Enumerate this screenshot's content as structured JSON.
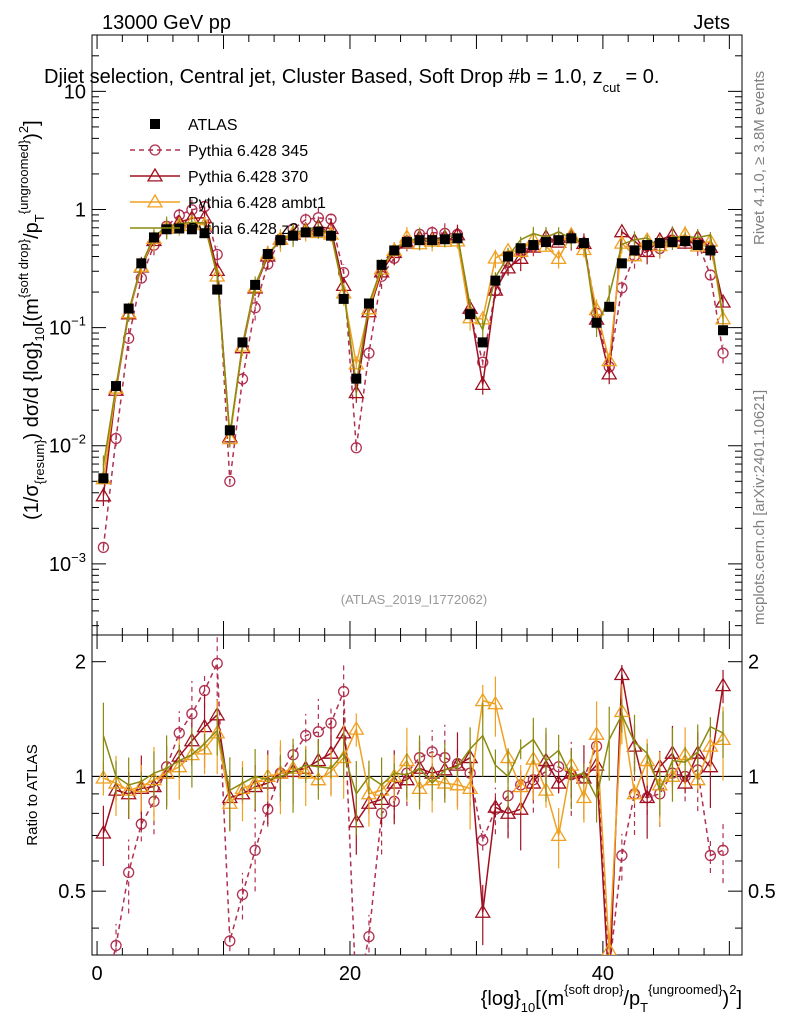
{
  "header": {
    "left": "13000 GeV pp",
    "right": "Jets",
    "title": "Djiet selection, Central jet, Cluster Based, Soft Drop #b = 1.0, z",
    "title_sub": "cut",
    "title_tail": " = 0.",
    "ref_label": "(ATLAS_2019_I1772062)"
  },
  "side": {
    "rivet": "Rivet 4.1.0, ≥ 3.8M events",
    "mcplots": "mcplots.cern.ch [arXiv:2401.10621]"
  },
  "axes": {
    "ylabel_main": "(1/σ_{resum}) dσ/d {log}_{10}[(m^{soft drop}/p_T^{ungroomed})^2]",
    "ylabel_main_parts": {
      "a": "(1/σ",
      "a_sub": "{resum}",
      "b": ") dσ/d {log}",
      "b_sub": "10",
      "c": "[(m",
      "c_sup": "{soft drop}",
      "d": "/p",
      "d_sub": "T",
      "d_sup": "{ungroomed}",
      "e": ")",
      "e_sup": "2",
      "f": "]"
    },
    "ylabel_ratio": "Ratio to ATLAS",
    "xlabel_parts": {
      "a": "{log}",
      "a_sub": "10",
      "b": "[(m",
      "b_sup": "{soft drop}",
      "c": "/p",
      "c_sub": "T",
      "c_sup": "{ungroomed}",
      "d": ")",
      "d_sup": "2",
      "e": "]"
    },
    "main_yticks": [
      {
        "mant": "10",
        "exp": "−3",
        "value": 0.001
      },
      {
        "mant": "10",
        "exp": "−2",
        "value": 0.01
      },
      {
        "mant": "10",
        "exp": "−1",
        "value": 0.1
      },
      {
        "mant": "1",
        "exp": "",
        "value": 1
      },
      {
        "mant": "10",
        "exp": "",
        "value": 10
      }
    ],
    "ratio_yticks": [
      {
        "label": "0.5",
        "value": 0.5
      },
      {
        "label": "1",
        "value": 1
      },
      {
        "label": "2",
        "value": 2
      }
    ],
    "xticks": [
      {
        "label": "0",
        "value": 0
      },
      {
        "label": "20",
        "value": 20
      },
      {
        "label": "40",
        "value": 40
      }
    ]
  },
  "chart_data": {
    "type": "line",
    "title": "Djiet selection, Central jet, Cluster Based, Soft Drop #b = 1.0, z_cut = 0.",
    "xlabel": "{log}_10[(m^{soft drop}/p_T^{ungroomed})^2]",
    "ylabel": "(1/sigma_resum) dsigma/d {log}_10[(m^{soft drop}/p_T^{ungroomed})^2]",
    "xlim": [
      -0.4,
      51
    ],
    "ylim": [
      0.00025,
      30
    ],
    "yscale": "log",
    "ratio_ylim": [
      0.34,
      2.35
    ],
    "ratio_yscale": "log",
    "x": [
      0.5,
      1.5,
      2.5,
      3.5,
      4.5,
      5.5,
      6.5,
      7.5,
      8.5,
      9.5,
      10.5,
      11.5,
      12.5,
      13.5,
      14.5,
      15.5,
      16.5,
      17.5,
      18.5,
      19.5,
      20.5,
      21.5,
      22.5,
      23.5,
      24.5,
      25.5,
      26.5,
      27.5,
      28.5,
      29.5,
      30.5,
      31.5,
      32.5,
      33.5,
      34.5,
      35.5,
      36.5,
      37.5,
      38.5,
      39.5,
      40.5,
      41.5,
      42.5,
      43.5,
      44.5,
      45.5,
      46.5,
      47.5,
      48.5,
      49.5
    ],
    "atlas": [
      0.0053,
      0.032,
      0.145,
      0.35,
      0.58,
      0.68,
      0.69,
      0.68,
      0.63,
      0.21,
      0.0135,
      0.075,
      0.23,
      0.42,
      0.55,
      0.6,
      0.64,
      0.65,
      0.6,
      0.175,
      0.037,
      0.16,
      0.34,
      0.45,
      0.53,
      0.55,
      0.55,
      0.56,
      0.57,
      0.13,
      0.075,
      0.25,
      0.4,
      0.47,
      0.5,
      0.53,
      0.55,
      0.57,
      0.52,
      0.11,
      0.15,
      0.35,
      0.45,
      0.5,
      0.52,
      0.53,
      0.54,
      0.5,
      0.45,
      0.095
    ],
    "series": [
      {
        "name": "Pythia 6.428 345",
        "color": "#b03050",
        "style": "dashed",
        "marker": "circle",
        "ratio": [
          0.26,
          0.36,
          0.56,
          0.75,
          0.86,
          1.06,
          1.3,
          1.46,
          1.68,
          1.98,
          0.37,
          0.49,
          0.64,
          0.82,
          1.02,
          1.14,
          1.28,
          1.31,
          1.38,
          1.67,
          0.26,
          0.38,
          0.8,
          0.86,
          1.02,
          1.12,
          1.16,
          1.12,
          1.08,
          1.02,
          0.68,
          0.82,
          0.89,
          0.95,
          0.98,
          1.03,
          1.06,
          1.01,
          0.99,
          1.2,
          0.31,
          0.62,
          0.9,
          0.88,
          0.9,
          1.02,
          1.0,
          1.04,
          0.62,
          0.64
        ]
      },
      {
        "name": "Pythia 6.428 370",
        "color": "#a01020",
        "style": "solid",
        "marker": "triangle",
        "ratio": [
          0.71,
          0.92,
          0.9,
          0.93,
          0.94,
          1.02,
          1.13,
          1.24,
          1.35,
          1.45,
          0.88,
          0.9,
          0.94,
          0.96,
          1.02,
          1.03,
          1.05,
          1.1,
          1.15,
          1.3,
          0.76,
          0.85,
          0.87,
          0.96,
          0.98,
          1.05,
          1.02,
          1.04,
          1.07,
          1.12,
          0.44,
          0.83,
          0.8,
          0.82,
          0.96,
          1.1,
          0.96,
          1.02,
          0.99,
          1.07,
          0.27,
          1.85,
          1.2,
          0.88,
          1.06,
          1.15,
          0.96,
          1.15,
          1.06,
          1.73
        ]
      },
      {
        "name": "Pythia 6.428 ambt1",
        "color": "#f0a020",
        "style": "solid",
        "marker": "triangle",
        "ratio": [
          0.99,
          0.96,
          0.92,
          0.94,
          0.98,
          1.02,
          1.06,
          1.14,
          1.18,
          1.3,
          0.85,
          0.93,
          0.96,
          1.0,
          1.02,
          1.05,
          1.02,
          0.98,
          1.03,
          1.12,
          1.33,
          0.9,
          0.92,
          1.0,
          1.1,
          0.93,
          0.98,
          0.96,
          0.95,
          0.93,
          1.58,
          1.55,
          1.12,
          0.94,
          1.11,
          0.92,
          0.7,
          1.07,
          0.88,
          1.29,
          0.35,
          1.48,
          0.9,
          1.1,
          0.95,
          1.0,
          1.14,
          0.98,
          1.2,
          1.25
        ]
      },
      {
        "name": "Pythia 6.428 z2",
        "color": "#8a8a10",
        "style": "solid",
        "marker": "none",
        "ratio": [
          1.28,
          1.0,
          0.95,
          0.97,
          1.02,
          1.05,
          1.1,
          1.14,
          1.22,
          1.32,
          0.92,
          0.96,
          1.0,
          0.98,
          1.0,
          1.03,
          1.07,
          1.06,
          1.05,
          1.15,
          0.9,
          1.0,
          0.95,
          1.02,
          1.01,
          1.05,
          0.96,
          1.04,
          1.06,
          1.18,
          1.28,
          1.07,
          1.0,
          1.18,
          1.25,
          1.1,
          1.17,
          1.0,
          1.02,
          0.88,
          1.25,
          1.45,
          1.23,
          1.15,
          0.92,
          1.1,
          1.09,
          1.16,
          1.35,
          1.3
        ]
      }
    ],
    "legend": [
      "ATLAS",
      "Pythia 6.428 345",
      "Pythia 6.428 370",
      "Pythia 6.428 ambt1",
      "Pythia 6.428 z2"
    ],
    "legend_position": "top-left"
  }
}
